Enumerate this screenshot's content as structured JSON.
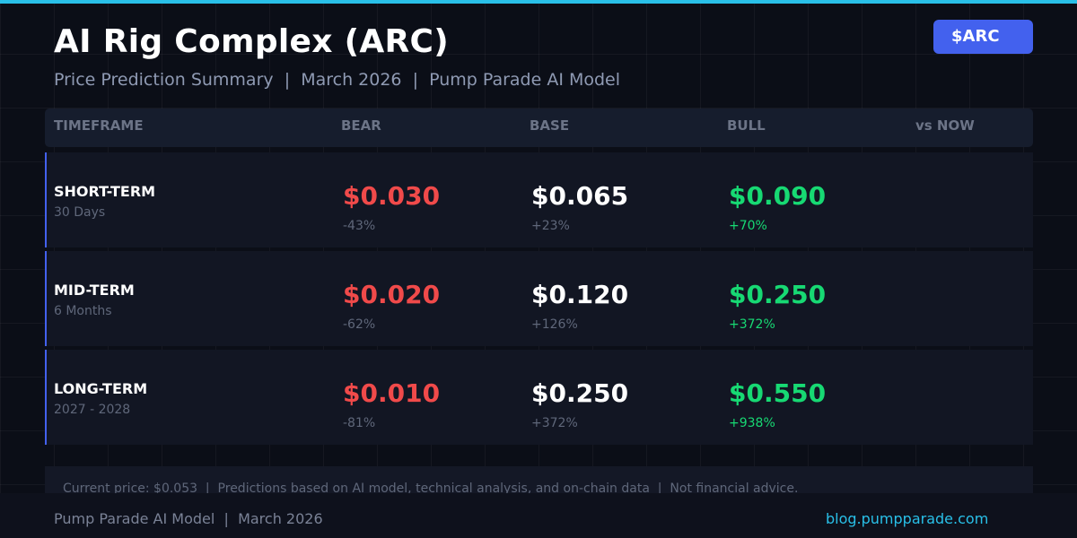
{
  "header": {
    "title": "AI Rig Complex (ARC)",
    "subtitle": "Price Prediction Summary  |  March 2026  |  Pump Parade AI Model",
    "ticker": "$ARC"
  },
  "table": {
    "columns": [
      "TIMEFRAME",
      "BEAR",
      "BASE",
      "BULL",
      "vs NOW"
    ],
    "rows": [
      {
        "label": "SHORT-TERM",
        "sub": "30 Days",
        "bear": "$0.030",
        "bear_pct": "-43%",
        "base": "$0.065",
        "base_pct": "+23%",
        "bull": "$0.090",
        "bull_pct": "+70%"
      },
      {
        "label": "MID-TERM",
        "sub": "6 Months",
        "bear": "$0.020",
        "bear_pct": "-62%",
        "base": "$0.120",
        "base_pct": "+126%",
        "bull": "$0.250",
        "bull_pct": "+372%"
      },
      {
        "label": "LONG-TERM",
        "sub": "2027 - 2028",
        "bear": "$0.010",
        "bear_pct": "-81%",
        "base": "$0.250",
        "base_pct": "+372%",
        "bull": "$0.550",
        "bull_pct": "+938%"
      }
    ]
  },
  "note": "Current price: $0.053  |  Predictions based on AI model, technical analysis, and on-chain data  |  Not financial advice.",
  "footer": {
    "left": "Pump Parade AI Model  |  March 2026",
    "right": "blog.pumpparade.com"
  },
  "colors": {
    "accent": "#4361ee",
    "top_bar": "#29c0e8",
    "bear": "#f04a4a",
    "bull": "#17d973",
    "link": "#29c0e8"
  }
}
